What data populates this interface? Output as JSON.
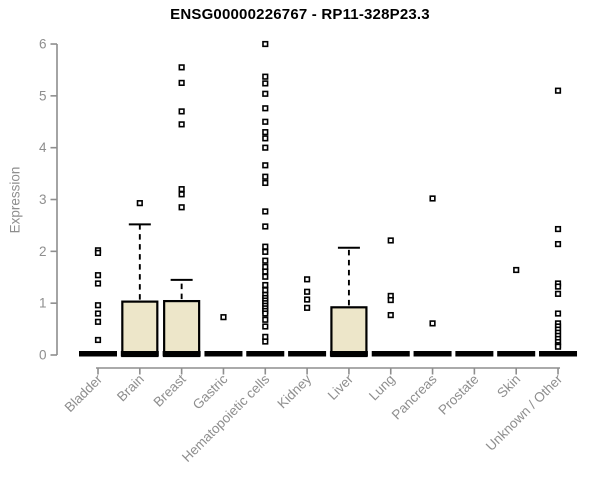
{
  "chart_data": {
    "type": "boxplot",
    "title": "ENSG00000226767 - RP11-328P23.3",
    "ylabel": "Expression",
    "xlabel": "",
    "ylim": [
      0,
      6
    ],
    "yticks": [
      0,
      1,
      2,
      3,
      4,
      5,
      6
    ],
    "grid": false,
    "legend": "none",
    "box_fill_color": "#EDE6C9",
    "box_stroke_color": "#000000",
    "axis_color": "#8e8e8e",
    "outlier_style": "open-square",
    "categories": [
      "Bladder",
      "Brain",
      "Breast",
      "Gastric",
      "Hematopoietic cells",
      "Kidney",
      "Liver",
      "Lung",
      "Pancreas",
      "Prostate",
      "Skin",
      "Unknown / Other"
    ],
    "series": [
      {
        "category": "Bladder",
        "q1": 0,
        "median": 0,
        "q3": 0,
        "whisker_low": 0,
        "whisker_high": 0,
        "outliers": [
          2.02,
          1.97,
          1.54,
          1.38,
          0.96,
          0.8,
          0.64,
          0.29
        ]
      },
      {
        "category": "Brain",
        "q1": 0,
        "median": 0,
        "q3": 1.03,
        "whisker_low": 0,
        "whisker_high": 2.52,
        "outliers": [
          2.93
        ]
      },
      {
        "category": "Breast",
        "q1": 0,
        "median": 0,
        "q3": 1.04,
        "whisker_low": 0,
        "whisker_high": 1.45,
        "outliers": [
          5.55,
          5.25,
          4.7,
          4.45,
          3.2,
          3.1,
          2.85
        ]
      },
      {
        "category": "Gastric",
        "q1": 0,
        "median": 0,
        "q3": 0,
        "whisker_low": 0,
        "whisker_high": 0,
        "outliers": [
          0.73
        ]
      },
      {
        "category": "Hematopoietic cells",
        "q1": 0,
        "median": 0,
        "q3": 0,
        "whisker_low": 0,
        "whisker_high": 0,
        "outliers": [
          6.0,
          5.37,
          5.24,
          5.04,
          4.76,
          4.5,
          4.3,
          4.18,
          4.0,
          3.66,
          3.44,
          3.32,
          2.77,
          2.48,
          2.09,
          1.99,
          1.82,
          1.7,
          1.61,
          1.51,
          1.35,
          1.25,
          1.16,
          1.1,
          1.05,
          1.0,
          0.95,
          0.9,
          0.85,
          0.8,
          0.68,
          0.55,
          0.35,
          0.26
        ]
      },
      {
        "category": "Kidney",
        "q1": 0,
        "median": 0,
        "q3": 0,
        "whisker_low": 0,
        "whisker_high": 0,
        "outliers": [
          1.46,
          1.22,
          1.07,
          0.91
        ]
      },
      {
        "category": "Liver",
        "q1": 0,
        "median": 0,
        "q3": 0.92,
        "whisker_low": 0,
        "whisker_high": 2.07,
        "outliers": []
      },
      {
        "category": "Lung",
        "q1": 0,
        "median": 0,
        "q3": 0,
        "whisker_low": 0,
        "whisker_high": 0,
        "outliers": [
          2.21,
          1.14,
          1.06,
          0.77
        ]
      },
      {
        "category": "Pancreas",
        "q1": 0,
        "median": 0,
        "q3": 0,
        "whisker_low": 0,
        "whisker_high": 0,
        "outliers": [
          3.02,
          0.61
        ]
      },
      {
        "category": "Prostate",
        "q1": 0,
        "median": 0,
        "q3": 0,
        "whisker_low": 0,
        "whisker_high": 0,
        "outliers": []
      },
      {
        "category": "Skin",
        "q1": 0,
        "median": 0,
        "q3": 0,
        "whisker_low": 0,
        "whisker_high": 0,
        "outliers": [
          1.64
        ]
      },
      {
        "category": "Unknown / Other",
        "q1": 0,
        "median": 0,
        "q3": 0,
        "whisker_low": 0,
        "whisker_high": 0,
        "outliers": [
          5.1,
          2.43,
          2.14,
          1.38,
          1.32,
          1.18,
          0.8,
          0.61,
          0.55,
          0.49,
          0.43,
          0.37,
          0.31,
          0.25,
          0.19,
          0.16
        ]
      }
    ]
  }
}
